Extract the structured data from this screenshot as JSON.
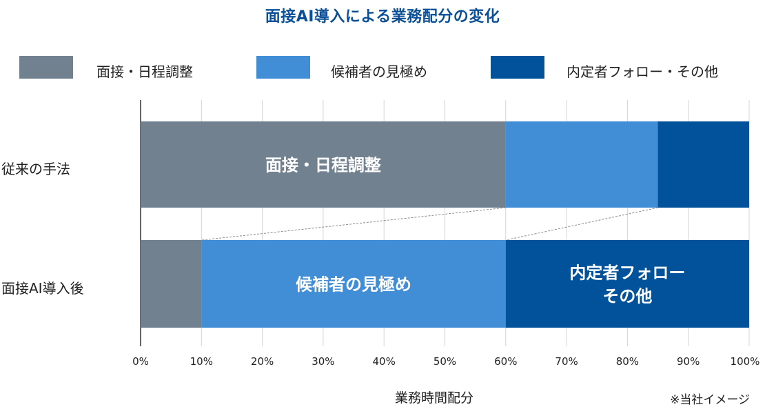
{
  "chart_data": {
    "type": "bar",
    "orientation": "horizontal",
    "stacked": true,
    "title": "面接AI導入による業務配分の変化",
    "xlabel": "業務時間配分",
    "ylabel": "",
    "xlim": [
      0,
      100
    ],
    "x_ticks": [
      "0%",
      "10%",
      "20%",
      "30%",
      "40%",
      "50%",
      "60%",
      "70%",
      "80%",
      "90%",
      "100%"
    ],
    "grid": true,
    "legend_position": "top",
    "categories": [
      "従来の手法",
      "面接AI導入後"
    ],
    "series": [
      {
        "name": "面接・日程調整",
        "color": "#728190",
        "values": [
          60,
          10
        ],
        "segment_labels": [
          "面接・日程調整",
          ""
        ]
      },
      {
        "name": "候補者の見極め",
        "color": "#418dd6",
        "values": [
          25,
          50
        ],
        "segment_labels": [
          "",
          "候補者の見極め"
        ]
      },
      {
        "name": "内定者フォロー・その他",
        "color": "#02529b",
        "values": [
          15,
          40
        ],
        "segment_labels": [
          "",
          "内定者フォロー\nその他"
        ]
      }
    ],
    "annotation": "※当社イメージ",
    "title_color": "#0b4f96"
  }
}
